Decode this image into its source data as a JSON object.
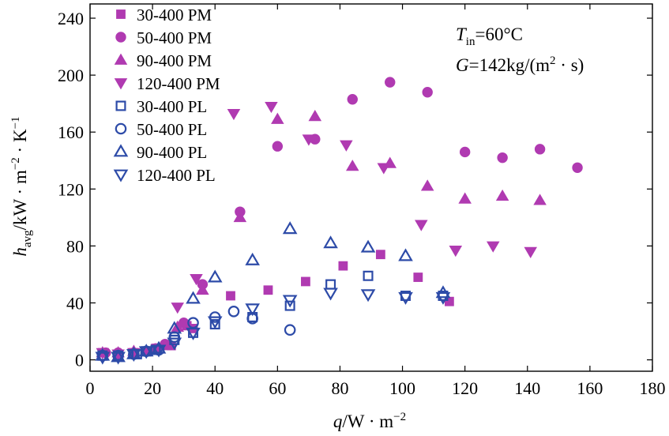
{
  "chart_data": {
    "type": "scatter",
    "xlabel": {
      "var": "q",
      "rest": "/W · m",
      "sup": "−2"
    },
    "ylabel": {
      "var": "h",
      "sub": "avg",
      "rest": "/kW · m",
      "sup1": "−2",
      "mid": " · K",
      "sup2": "−1"
    },
    "xlim": [
      0,
      180
    ],
    "ylim": [
      -8,
      250
    ],
    "xticks": [
      0,
      20,
      40,
      60,
      80,
      100,
      120,
      140,
      160,
      180
    ],
    "yticks": [
      0,
      40,
      80,
      120,
      160,
      200,
      240
    ],
    "annotation": {
      "line1": {
        "var": "T",
        "sub": "in",
        "rest": "=60°C"
      },
      "line2": {
        "var": "G",
        "rest": "=142kg/(m",
        "sup": "2",
        "tail": " · s)"
      }
    },
    "legend_position": "top-left",
    "colors": {
      "PM": "#b03ab1",
      "PL": "#2d4ba8"
    },
    "series": [
      {
        "name": "30-400 PM",
        "marker": "square",
        "filled": true,
        "color": "PM",
        "points": [
          [
            4,
            5
          ],
          [
            9,
            4
          ],
          [
            14,
            5
          ],
          [
            18,
            6
          ],
          [
            21,
            8
          ],
          [
            26,
            10
          ],
          [
            31,
            24
          ],
          [
            33,
            22
          ],
          [
            45,
            45
          ],
          [
            57,
            49
          ],
          [
            69,
            55
          ],
          [
            81,
            66
          ],
          [
            93,
            74
          ],
          [
            105,
            58
          ],
          [
            115,
            41
          ]
        ]
      },
      {
        "name": "50-400 PM",
        "marker": "circle",
        "filled": true,
        "color": "PM",
        "points": [
          [
            5,
            5
          ],
          [
            9,
            5
          ],
          [
            14,
            5
          ],
          [
            18,
            6
          ],
          [
            21,
            8
          ],
          [
            24,
            11
          ],
          [
            30,
            26
          ],
          [
            36,
            53
          ],
          [
            48,
            104
          ],
          [
            60,
            150
          ],
          [
            72,
            155
          ],
          [
            84,
            183
          ],
          [
            96,
            195
          ],
          [
            108,
            188
          ],
          [
            120,
            146
          ],
          [
            132,
            142
          ],
          [
            144,
            148
          ],
          [
            156,
            135
          ]
        ]
      },
      {
        "name": "90-400 PM",
        "marker": "triangle-up",
        "filled": true,
        "color": "PM",
        "points": [
          [
            4,
            5
          ],
          [
            9,
            5
          ],
          [
            14,
            6
          ],
          [
            20,
            7
          ],
          [
            24,
            10
          ],
          [
            28,
            23
          ],
          [
            36,
            49
          ],
          [
            48,
            100
          ],
          [
            60,
            169
          ],
          [
            72,
            171
          ],
          [
            84,
            136
          ],
          [
            96,
            138
          ],
          [
            108,
            122
          ],
          [
            120,
            113
          ],
          [
            132,
            115
          ],
          [
            144,
            112
          ]
        ]
      },
      {
        "name": "120-400 PM",
        "marker": "triangle-down",
        "filled": true,
        "color": "PM",
        "points": [
          [
            4,
            5
          ],
          [
            9,
            4
          ],
          [
            14,
            5
          ],
          [
            18,
            6
          ],
          [
            22,
            8
          ],
          [
            28,
            37
          ],
          [
            34,
            57
          ],
          [
            46,
            173
          ],
          [
            58,
            178
          ],
          [
            70,
            155
          ],
          [
            82,
            151
          ],
          [
            94,
            135
          ],
          [
            106,
            95
          ],
          [
            117,
            77
          ],
          [
            129,
            80
          ],
          [
            141,
            76
          ]
        ]
      },
      {
        "name": "30-400 PL",
        "marker": "square",
        "filled": false,
        "color": "PL",
        "points": [
          [
            4,
            3
          ],
          [
            9,
            3
          ],
          [
            15,
            4
          ],
          [
            18,
            6
          ],
          [
            21,
            7
          ],
          [
            27,
            14
          ],
          [
            33,
            19
          ],
          [
            40,
            25
          ],
          [
            52,
            30
          ],
          [
            64,
            38
          ],
          [
            77,
            53
          ],
          [
            89,
            59
          ],
          [
            101,
            45
          ],
          [
            113,
            45
          ]
        ]
      },
      {
        "name": "50-400 PL",
        "marker": "circle",
        "filled": false,
        "color": "PL",
        "points": [
          [
            4,
            3
          ],
          [
            9,
            3
          ],
          [
            14,
            4
          ],
          [
            18,
            6
          ],
          [
            22,
            7
          ],
          [
            27,
            16
          ],
          [
            33,
            26
          ],
          [
            40,
            30
          ],
          [
            46,
            34
          ],
          [
            52,
            29
          ],
          [
            64,
            21
          ]
        ]
      },
      {
        "name": "90-400 PL",
        "marker": "triangle-up",
        "filled": false,
        "color": "PL",
        "points": [
          [
            4,
            3
          ],
          [
            9,
            2
          ],
          [
            14,
            4
          ],
          [
            18,
            6
          ],
          [
            22,
            8
          ],
          [
            27,
            22
          ],
          [
            33,
            43
          ],
          [
            40,
            58
          ],
          [
            52,
            70
          ],
          [
            64,
            92
          ],
          [
            77,
            82
          ],
          [
            89,
            79
          ],
          [
            101,
            73
          ],
          [
            113,
            47
          ]
        ]
      },
      {
        "name": "120-400 PL",
        "marker": "triangle-down",
        "filled": false,
        "color": "PL",
        "points": [
          [
            4,
            2
          ],
          [
            9,
            2
          ],
          [
            14,
            4
          ],
          [
            18,
            6
          ],
          [
            22,
            7
          ],
          [
            27,
            12
          ],
          [
            33,
            19
          ],
          [
            40,
            27
          ],
          [
            52,
            36
          ],
          [
            64,
            42
          ],
          [
            77,
            47
          ],
          [
            89,
            46
          ],
          [
            101,
            44
          ],
          [
            113,
            44
          ]
        ]
      }
    ]
  }
}
